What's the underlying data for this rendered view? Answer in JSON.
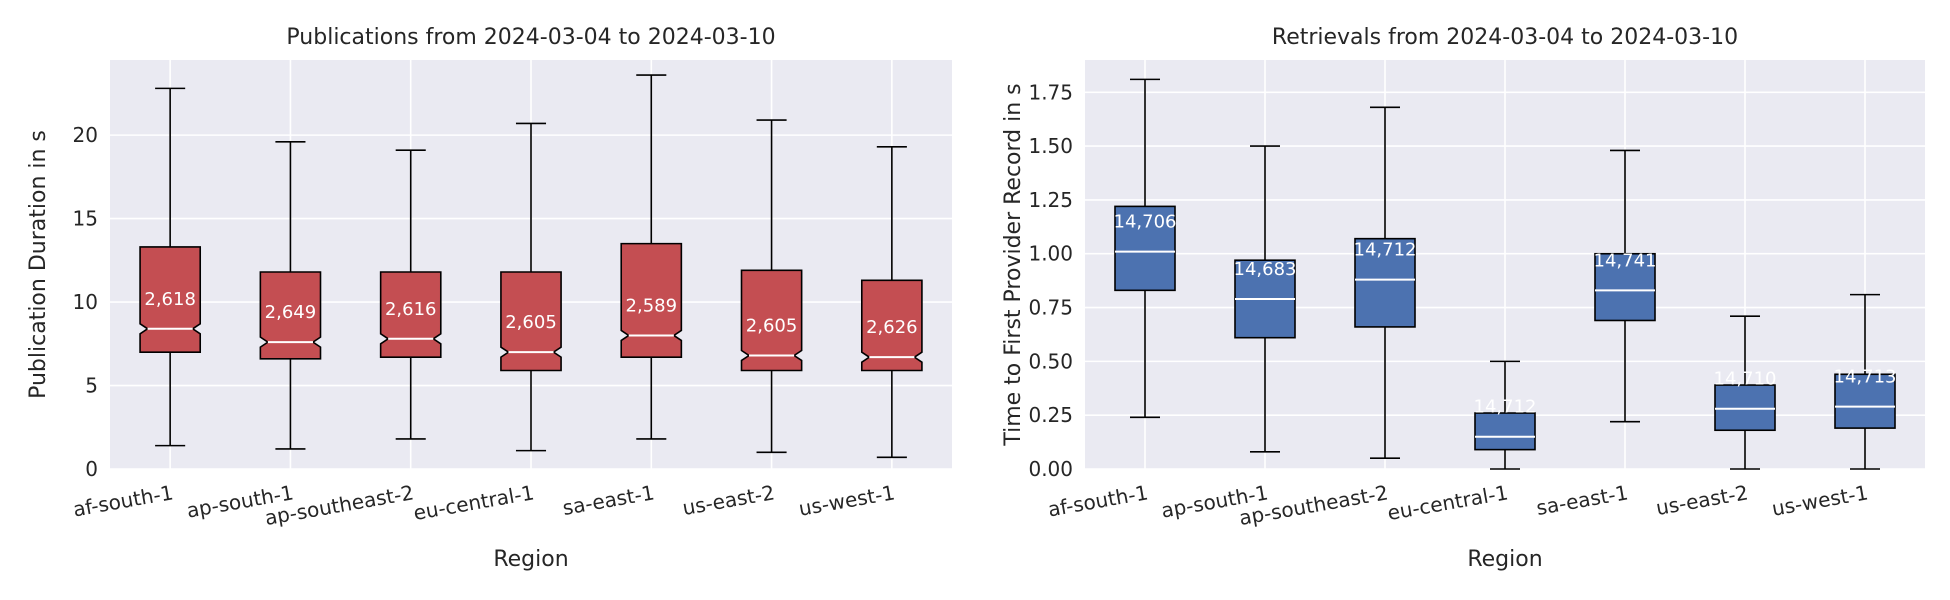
{
  "colors": {
    "plot_bg": "#eaeaf2",
    "grid": "#ffffff",
    "publications_box": "#c44e52",
    "retrievals_box": "#4c72b0",
    "median_line": "#ffffff",
    "whisker": "#000000"
  },
  "chart_data": [
    {
      "type": "box",
      "title": "Publications from 2024-03-04 to 2024-03-10",
      "xlabel": "Region",
      "ylabel": "Publication Duration in s",
      "ylim": [
        0,
        24.5
      ],
      "yticks": [
        0,
        5,
        10,
        15,
        20
      ],
      "grid": true,
      "notched": true,
      "categories": [
        "af-south-1",
        "ap-south-1",
        "ap-southeast-2",
        "eu-central-1",
        "sa-east-1",
        "us-east-2",
        "us-west-1"
      ],
      "boxes": [
        {
          "whislo": 1.4,
          "q1": 7.0,
          "med": 8.4,
          "q3": 13.3,
          "whishi": 22.8,
          "count": "2,618"
        },
        {
          "whislo": 1.2,
          "q1": 6.6,
          "med": 7.6,
          "q3": 11.8,
          "whishi": 19.6,
          "count": "2,649"
        },
        {
          "whislo": 1.8,
          "q1": 6.7,
          "med": 7.8,
          "q3": 11.8,
          "whishi": 19.1,
          "count": "2,616"
        },
        {
          "whislo": 1.1,
          "q1": 5.9,
          "med": 7.0,
          "q3": 11.8,
          "whishi": 20.7,
          "count": "2,605"
        },
        {
          "whislo": 1.8,
          "q1": 6.7,
          "med": 8.0,
          "q3": 13.5,
          "whishi": 23.6,
          "count": "2,589"
        },
        {
          "whislo": 1.0,
          "q1": 5.9,
          "med": 6.8,
          "q3": 11.9,
          "whishi": 20.9,
          "count": "2,605"
        },
        {
          "whislo": 0.7,
          "q1": 5.9,
          "med": 6.7,
          "q3": 11.3,
          "whishi": 19.3,
          "count": "2,626"
        }
      ]
    },
    {
      "type": "box",
      "title": "Retrievals from 2024-03-04 to 2024-03-10",
      "xlabel": "Region",
      "ylabel": "Time to First Provider Record in s",
      "ylim": [
        0,
        1.9
      ],
      "yticks": [
        "0.00",
        "0.25",
        "0.50",
        "0.75",
        "1.00",
        "1.25",
        "1.50",
        "1.75"
      ],
      "grid": true,
      "notched": false,
      "categories": [
        "af-south-1",
        "ap-south-1",
        "ap-southeast-2",
        "eu-central-1",
        "sa-east-1",
        "us-east-2",
        "us-west-1"
      ],
      "boxes": [
        {
          "whislo": 0.24,
          "q1": 0.83,
          "med": 1.01,
          "q3": 1.22,
          "whishi": 1.81,
          "count": "14,706"
        },
        {
          "whislo": 0.08,
          "q1": 0.61,
          "med": 0.79,
          "q3": 0.97,
          "whishi": 1.5,
          "count": "14,683"
        },
        {
          "whislo": 0.05,
          "q1": 0.66,
          "med": 0.88,
          "q3": 1.07,
          "whishi": 1.68,
          "count": "14,712"
        },
        {
          "whislo": 0.0,
          "q1": 0.09,
          "med": 0.15,
          "q3": 0.26,
          "whishi": 0.5,
          "count": "14,712"
        },
        {
          "whislo": 0.22,
          "q1": 0.69,
          "med": 0.83,
          "q3": 1.0,
          "whishi": 1.48,
          "count": "14,741"
        },
        {
          "whislo": 0.0,
          "q1": 0.18,
          "med": 0.28,
          "q3": 0.39,
          "whishi": 0.71,
          "count": "14,710"
        },
        {
          "whislo": 0.0,
          "q1": 0.19,
          "med": 0.29,
          "q3": 0.44,
          "whishi": 0.81,
          "count": "14,713"
        }
      ]
    }
  ]
}
